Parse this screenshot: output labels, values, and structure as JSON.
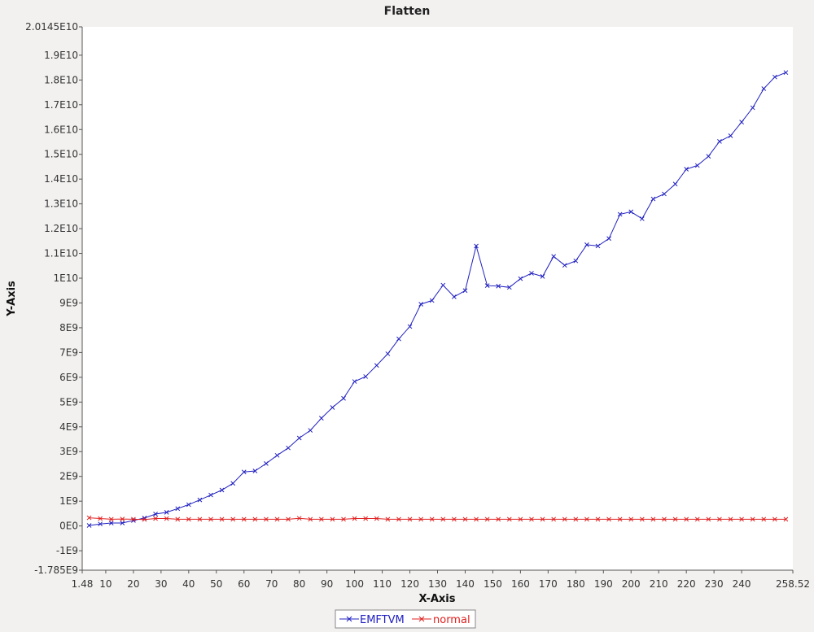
{
  "chart_data": {
    "type": "line",
    "title": "Flatten",
    "xlabel": "X-Axis",
    "ylabel": "Y-Axis",
    "xlim": [
      1.48,
      258.52
    ],
    "ylim": [
      -1785000000.0,
      20145000000.0
    ],
    "x_ticks": [
      {
        "value": 1.48,
        "label": "1.48"
      },
      {
        "value": 10,
        "label": "10"
      },
      {
        "value": 20,
        "label": "20"
      },
      {
        "value": 30,
        "label": "30"
      },
      {
        "value": 40,
        "label": "40"
      },
      {
        "value": 50,
        "label": "50"
      },
      {
        "value": 60,
        "label": "60"
      },
      {
        "value": 70,
        "label": "70"
      },
      {
        "value": 80,
        "label": "80"
      },
      {
        "value": 90,
        "label": "90"
      },
      {
        "value": 100,
        "label": "100"
      },
      {
        "value": 110,
        "label": "110"
      },
      {
        "value": 120,
        "label": "120"
      },
      {
        "value": 130,
        "label": "130"
      },
      {
        "value": 140,
        "label": "140"
      },
      {
        "value": 150,
        "label": "150"
      },
      {
        "value": 160,
        "label": "160"
      },
      {
        "value": 170,
        "label": "170"
      },
      {
        "value": 180,
        "label": "180"
      },
      {
        "value": 190,
        "label": "190"
      },
      {
        "value": 200,
        "label": "200"
      },
      {
        "value": 210,
        "label": "210"
      },
      {
        "value": 220,
        "label": "220"
      },
      {
        "value": 230,
        "label": "230"
      },
      {
        "value": 240,
        "label": "240"
      },
      {
        "value": 258.52,
        "label": "258.52"
      }
    ],
    "y_ticks": [
      {
        "value": -1785000000.0,
        "label": "-1.785E9"
      },
      {
        "value": -1000000000.0,
        "label": "-1E9"
      },
      {
        "value": 0,
        "label": "0E0"
      },
      {
        "value": 1000000000.0,
        "label": "1E9"
      },
      {
        "value": 2000000000.0,
        "label": "2E9"
      },
      {
        "value": 3000000000.0,
        "label": "3E9"
      },
      {
        "value": 4000000000.0,
        "label": "4E9"
      },
      {
        "value": 5000000000.0,
        "label": "5E9"
      },
      {
        "value": 6000000000.0,
        "label": "6E9"
      },
      {
        "value": 7000000000.0,
        "label": "7E9"
      },
      {
        "value": 8000000000.0,
        "label": "8E9"
      },
      {
        "value": 9000000000.0,
        "label": "9E9"
      },
      {
        "value": 10000000000.0,
        "label": "1E10"
      },
      {
        "value": 11000000000.0,
        "label": "1.1E10"
      },
      {
        "value": 12000000000.0,
        "label": "1.2E10"
      },
      {
        "value": 13000000000.0,
        "label": "1.3E10"
      },
      {
        "value": 14000000000.0,
        "label": "1.4E10"
      },
      {
        "value": 15000000000.0,
        "label": "1.5E10"
      },
      {
        "value": 16000000000.0,
        "label": "1.6E10"
      },
      {
        "value": 17000000000.0,
        "label": "1.7E10"
      },
      {
        "value": 18000000000.0,
        "label": "1.8E10"
      },
      {
        "value": 19000000000.0,
        "label": "1.9E10"
      },
      {
        "value": 20145000000.0,
        "label": "2.0145E10"
      }
    ],
    "grid": false,
    "legend_position": "bottom",
    "x": [
      4,
      8,
      12,
      16,
      20,
      24,
      28,
      32,
      36,
      40,
      44,
      48,
      52,
      56,
      60,
      64,
      68,
      72,
      76,
      80,
      84,
      88,
      92,
      96,
      100,
      104,
      108,
      112,
      116,
      120,
      124,
      128,
      132,
      136,
      140,
      144,
      148,
      152,
      156,
      160,
      164,
      168,
      172,
      176,
      180,
      184,
      188,
      192,
      196,
      200,
      204,
      208,
      212,
      216,
      220,
      224,
      228,
      232,
      236,
      240,
      244,
      248,
      252,
      256
    ],
    "series": [
      {
        "name": "EMFTVM",
        "color": "#2020c0",
        "values": [
          20000000.0,
          80000000.0,
          120000000.0,
          120000000.0,
          220000000.0,
          320000000.0,
          480000000.0,
          550000000.0,
          700000000.0,
          860000000.0,
          1050000000.0,
          1250000000.0,
          1450000000.0,
          1720000000.0,
          2180000000.0,
          2220000000.0,
          2520000000.0,
          2850000000.0,
          3150000000.0,
          3550000000.0,
          3860000000.0,
          4350000000.0,
          4780000000.0,
          5150000000.0,
          5830000000.0,
          6030000000.0,
          6480000000.0,
          6950000000.0,
          7550000000.0,
          8050000000.0,
          8950000000.0,
          9100000000.0,
          9720000000.0,
          9250000000.0,
          9500000000.0,
          11300000000.0,
          9700000000.0,
          9680000000.0,
          9630000000.0,
          9980000000.0,
          10200000000.0,
          10070000000.0,
          10880000000.0,
          10520000000.0,
          10700000000.0,
          11350000000.0,
          11300000000.0,
          11600000000.0,
          12580000000.0,
          12680000000.0,
          12400000000.0,
          13200000000.0,
          13400000000.0,
          13800000000.0,
          14400000000.0,
          14550000000.0,
          14920000000.0,
          15520000000.0,
          15750000000.0,
          16300000000.0,
          16880000000.0,
          17650000000.0,
          18120000000.0,
          18300000000.0
        ]
      },
      {
        "name": "normal",
        "color": "#e02020",
        "values": [
          330000000.0,
          300000000.0,
          270000000.0,
          280000000.0,
          270000000.0,
          260000000.0,
          300000000.0,
          300000000.0,
          270000000.0,
          270000000.0,
          270000000.0,
          270000000.0,
          270000000.0,
          270000000.0,
          270000000.0,
          270000000.0,
          270000000.0,
          270000000.0,
          270000000.0,
          310000000.0,
          270000000.0,
          270000000.0,
          270000000.0,
          270000000.0,
          300000000.0,
          300000000.0,
          300000000.0,
          270000000.0,
          270000000.0,
          270000000.0,
          270000000.0,
          270000000.0,
          270000000.0,
          270000000.0,
          270000000.0,
          270000000.0,
          270000000.0,
          270000000.0,
          270000000.0,
          270000000.0,
          270000000.0,
          270000000.0,
          270000000.0,
          270000000.0,
          270000000.0,
          270000000.0,
          270000000.0,
          270000000.0,
          270000000.0,
          270000000.0,
          270000000.0,
          270000000.0,
          270000000.0,
          270000000.0,
          270000000.0,
          270000000.0,
          270000000.0,
          270000000.0,
          270000000.0,
          270000000.0,
          270000000.0,
          270000000.0,
          270000000.0,
          270000000.0
        ]
      }
    ]
  }
}
